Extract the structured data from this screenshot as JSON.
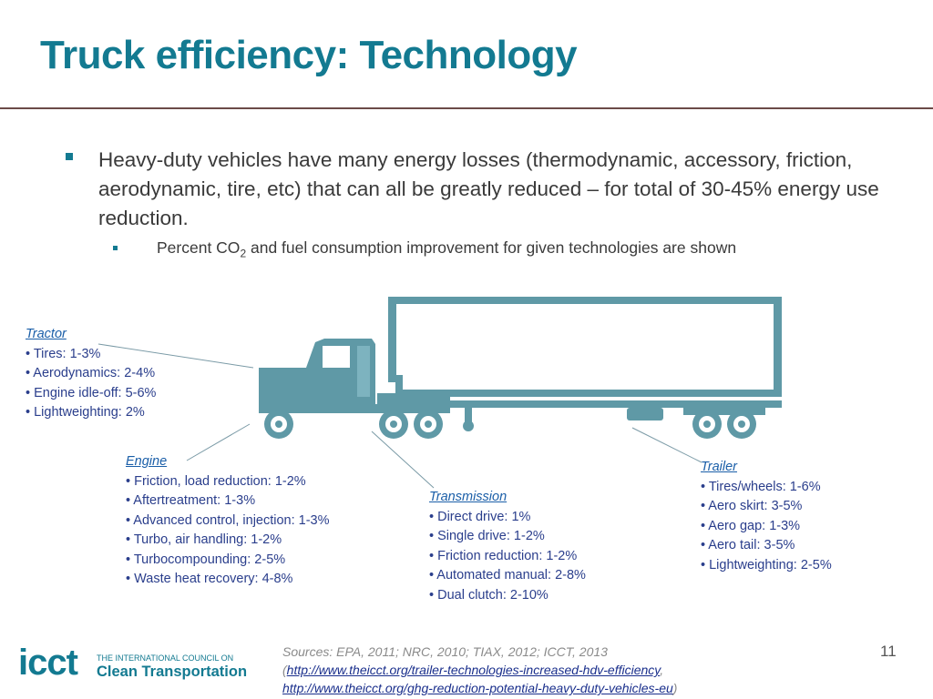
{
  "title": "Truck efficiency: Technology",
  "bullets": {
    "main": "Heavy-duty vehicles have many energy losses (thermodynamic, accessory, friction, aerodynamic, tire, etc) that can all be greatly reduced – for total of 30-45% energy use reduction.",
    "sub_pre": "Percent CO",
    "sub_subscript": "2",
    "sub_post": " and fuel consumption improvement for given technologies are shown"
  },
  "tractor": {
    "heading": "Tractor",
    "items": [
      "• Tires: 1-3%",
      "• Aerodynamics: 2-4%",
      "• Engine idle-off: 5-6%",
      "• Lightweighting: 2%"
    ]
  },
  "engine": {
    "heading": "Engine",
    "items": [
      "• Friction, load reduction: 1-2%",
      "• Aftertreatment: 1-3%",
      "• Advanced control, injection: 1-3%",
      "• Turbo, air handling: 1-2%",
      "• Turbocompounding: 2-5%",
      "• Waste heat recovery: 4-8%"
    ]
  },
  "transmission": {
    "heading": "Transmission",
    "items": [
      "• Direct drive: 1%",
      "• Single drive: 1-2%",
      "• Friction reduction: 1-2%",
      "• Automated manual: 2-8%",
      "• Dual clutch: 2-10%"
    ]
  },
  "trailer": {
    "heading": "Trailer",
    "items": [
      "• Tires/wheels: 1-6%",
      "• Aero skirt: 3-5%",
      "• Aero gap: 1-3%",
      "• Aero tail: 3-5%",
      "• Lightweighting: 2-5%"
    ]
  },
  "sources": {
    "line1": "Sources: EPA, 2011; NRC, 2010; TIAX, 2012; ICCT, 2013",
    "paren_open": "(",
    "link1": "http://www.theicct.org/trailer-technologies-increased-hdv-efficiency",
    "comma": ",",
    "link2": "http://www.theicct.org/ghg-reduction-potential-heavy-duty-vehicles-eu",
    "paren_close": ")"
  },
  "page_number": "11",
  "logo": {
    "wordmark": "icct",
    "small_text": "THE INTERNATIONAL COUNCIL ON",
    "big_text": "Clean Transportation"
  },
  "colors": {
    "title": "#137a91",
    "truck": "#5f99a6",
    "heading": "#1a5ea8",
    "body_blue": "#2a3e8c"
  }
}
